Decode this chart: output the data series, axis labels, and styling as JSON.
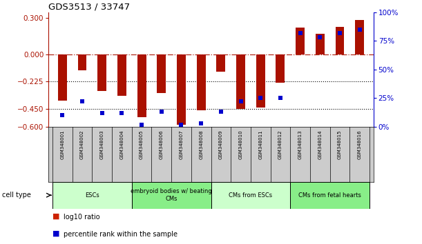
{
  "title": "GDS3513 / 33747",
  "samples": [
    "GSM348001",
    "GSM348002",
    "GSM348003",
    "GSM348004",
    "GSM348005",
    "GSM348006",
    "GSM348007",
    "GSM348008",
    "GSM348009",
    "GSM348010",
    "GSM348011",
    "GSM348012",
    "GSM348013",
    "GSM348014",
    "GSM348015",
    "GSM348016"
  ],
  "log10_ratio": [
    -0.38,
    -0.13,
    -0.3,
    -0.34,
    -0.52,
    -0.32,
    -0.58,
    -0.46,
    -0.14,
    -0.45,
    -0.44,
    -0.235,
    0.22,
    0.17,
    0.23,
    0.285
  ],
  "percentile_rank": [
    10,
    22,
    12,
    12,
    2,
    13,
    2,
    3,
    13,
    22,
    25,
    25,
    82,
    78,
    82,
    85
  ],
  "cell_type_groups": [
    {
      "label": "ESCs",
      "start": 0,
      "end": 3,
      "color": "#ccffcc"
    },
    {
      "label": "embryoid bodies w/ beating\nCMs",
      "start": 4,
      "end": 7,
      "color": "#88ee88"
    },
    {
      "label": "CMs from ESCs",
      "start": 8,
      "end": 11,
      "color": "#ccffcc"
    },
    {
      "label": "CMs from fetal hearts",
      "start": 12,
      "end": 15,
      "color": "#88ee88"
    }
  ],
  "ylim_left": [
    -0.6,
    0.35
  ],
  "ylim_right": [
    0,
    100
  ],
  "yticks_left": [
    -0.6,
    -0.45,
    -0.225,
    0,
    0.3
  ],
  "yticks_right": [
    0,
    25,
    50,
    75,
    100
  ],
  "bar_color": "#aa1100",
  "dot_color": "#0000cc",
  "bar_width": 0.45,
  "background_color": "#ffffff",
  "plot_bg_color": "#ffffff",
  "names_bg_color": "#cccccc",
  "legend_square_red": "#cc2200",
  "legend_square_blue": "#0000cc"
}
